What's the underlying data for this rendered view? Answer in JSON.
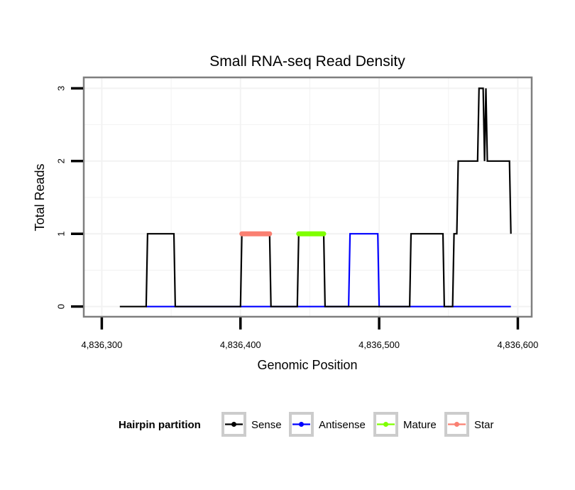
{
  "chart_data": {
    "type": "line",
    "title": "Small RNA-seq Read Density",
    "xlabel": "Genomic Position",
    "ylabel": "Total Reads",
    "xlim": [
      4836287,
      4836610
    ],
    "ylim": [
      -0.14,
      3.15
    ],
    "xticks": [
      4836300,
      4836400,
      4836500,
      4836600
    ],
    "xtick_labels": [
      "4,836,300",
      "4,836,400",
      "4,836,500",
      "4,836,600"
    ],
    "yticks": [
      0,
      1,
      2,
      3
    ],
    "ytick_labels": [
      "0",
      "1",
      "2",
      "3"
    ],
    "grid": true,
    "legend": {
      "title": "Hairpin partition",
      "placement": "bottom",
      "entries": [
        {
          "name": "Sense",
          "color": "#000000"
        },
        {
          "name": "Antisense",
          "color": "#0000ff"
        },
        {
          "name": "Mature",
          "color": "#7fff00"
        },
        {
          "name": "Star",
          "color": "#fa8072"
        }
      ]
    },
    "series": [
      {
        "name": "Sense",
        "color": "#000000",
        "points": [
          [
            4836313,
            0
          ],
          [
            4836332,
            0
          ],
          [
            4836333,
            1
          ],
          [
            4836352,
            1
          ],
          [
            4836353,
            0
          ],
          [
            4836400,
            0
          ],
          [
            4836401,
            1
          ],
          [
            4836421,
            1
          ],
          [
            4836422,
            0
          ],
          [
            4836441,
            0
          ],
          [
            4836442,
            1
          ],
          [
            4836460,
            1
          ],
          [
            4836461,
            0
          ],
          [
            4836522,
            0
          ],
          [
            4836523,
            1
          ],
          [
            4836546,
            1
          ],
          [
            4836547,
            0
          ],
          [
            4836553,
            0
          ],
          [
            4836554,
            1
          ],
          [
            4836556,
            1
          ],
          [
            4836557,
            2
          ],
          [
            4836571,
            2
          ],
          [
            4836572,
            3
          ],
          [
            4836575,
            3
          ],
          [
            4836576,
            2
          ],
          [
            4836577,
            3
          ],
          [
            4836578,
            2
          ],
          [
            4836594,
            2
          ],
          [
            4836595,
            1
          ]
        ]
      },
      {
        "name": "Antisense",
        "color": "#0000ff",
        "points": [
          [
            4836332,
            0
          ],
          [
            4836478,
            0
          ],
          [
            4836479,
            1
          ],
          [
            4836499,
            1
          ],
          [
            4836500,
            0
          ],
          [
            4836595,
            0
          ]
        ]
      },
      {
        "name": "Mature",
        "color": "#7fff00",
        "points": [
          [
            4836442,
            1
          ],
          [
            4836460,
            1
          ]
        ]
      },
      {
        "name": "Star",
        "color": "#fa8072",
        "points": [
          [
            4836401,
            1
          ],
          [
            4836421,
            1
          ]
        ]
      }
    ]
  }
}
